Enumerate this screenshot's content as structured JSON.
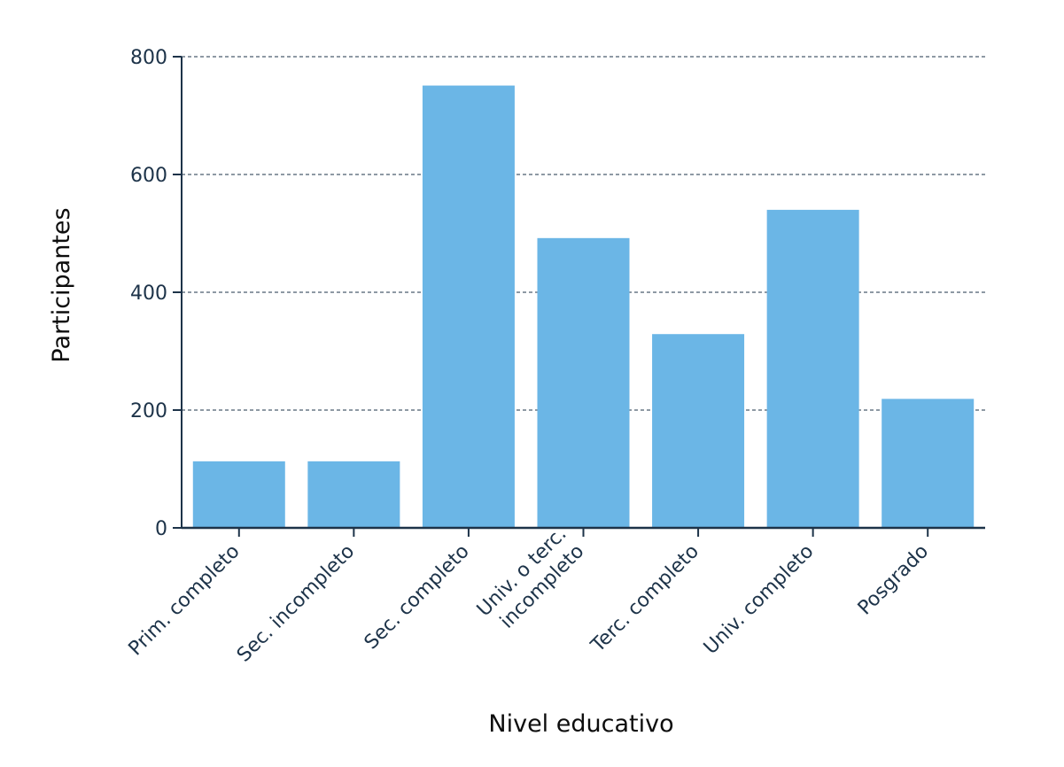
{
  "chart_data": {
    "type": "bar",
    "categories": [
      [
        "Prim. completo"
      ],
      [
        "Sec. incompleto"
      ],
      [
        "Sec. completo"
      ],
      [
        "Univ. o terc.",
        "incompleto"
      ],
      [
        "Terc. completo"
      ],
      [
        "Univ. completo"
      ],
      [
        "Posgrado"
      ]
    ],
    "values": [
      113,
      113,
      751,
      492,
      329,
      540,
      219
    ],
    "xlabel": "Nivel educativo",
    "ylabel": "Participantes",
    "ylim": [
      0,
      800
    ],
    "yticks": [
      0,
      200,
      400,
      600,
      800
    ],
    "grid": "horizontal-dashed",
    "colors": {
      "bar": "#6bb6e6",
      "axis": "#1d3349",
      "grid": "#1d3349",
      "text": "#1d3349"
    }
  }
}
